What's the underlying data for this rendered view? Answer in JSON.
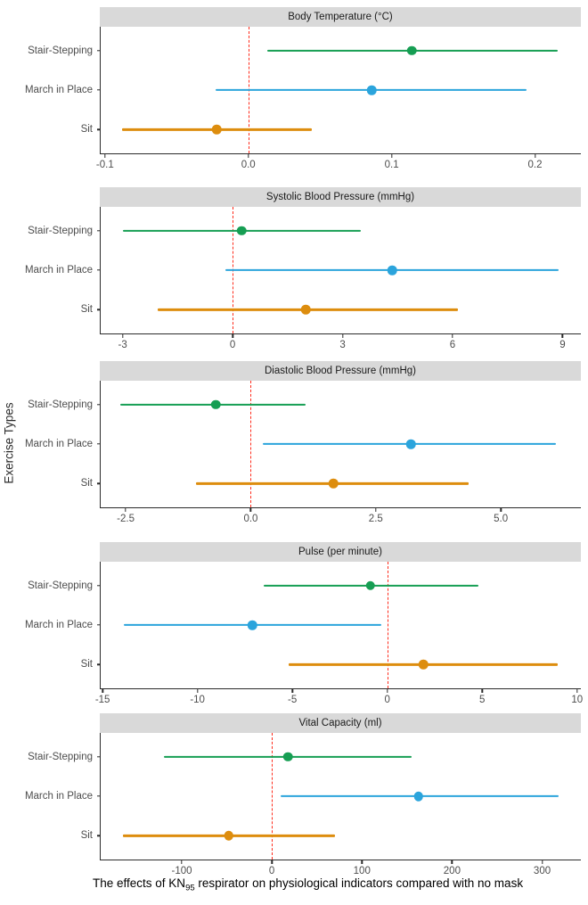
{
  "figure": {
    "y_axis_title": "Exercise Types",
    "caption": {
      "prefix": "The effects of KN",
      "subscript": "95",
      "suffix": " respirator on physiological indicators compared with no mask"
    }
  },
  "colors": {
    "Stair-Stepping": "#169e53",
    "March in Place": "#2ba4dc",
    "Sit": "#dd8d0e",
    "reference_line": "#ff2a1a",
    "strip_background": "#d9d9d9",
    "axis_text": "#4d4d4d",
    "axis_line": "#2b2b2b"
  },
  "chart_data": [
    {
      "type": "pointrange",
      "title": "Body Temperature (°C)",
      "categories": [
        "Stair-Stepping",
        "March in Place",
        "Sit"
      ],
      "xlim": [
        -0.103,
        0.232
      ],
      "reference_x": 0,
      "grid": false,
      "ticks": [
        {
          "value": -0.1,
          "label": "-0.1"
        },
        {
          "value": 0.0,
          "label": "0.0"
        },
        {
          "value": 0.1,
          "label": "0.1"
        },
        {
          "value": 0.2,
          "label": "0.2"
        }
      ],
      "series": [
        {
          "name": "Stair-Stepping",
          "estimate": 0.114,
          "ci_lower": 0.013,
          "ci_upper": 0.216
        },
        {
          "name": "March in Place",
          "estimate": 0.086,
          "ci_lower": -0.023,
          "ci_upper": 0.194
        },
        {
          "name": "Sit",
          "estimate": -0.022,
          "ci_lower": -0.088,
          "ci_upper": 0.044
        }
      ]
    },
    {
      "type": "pointrange",
      "title": "Systolic Blood Pressure (mmHg)",
      "categories": [
        "Stair-Stepping",
        "March in Place",
        "Sit"
      ],
      "xlim": [
        -3.6,
        9.5
      ],
      "reference_x": 0,
      "grid": false,
      "ticks": [
        {
          "value": -3,
          "label": "-3"
        },
        {
          "value": 0,
          "label": "0"
        },
        {
          "value": 3,
          "label": "3"
        },
        {
          "value": 6,
          "label": "6"
        },
        {
          "value": 9,
          "label": "9"
        }
      ],
      "series": [
        {
          "name": "Stair-Stepping",
          "estimate": 0.25,
          "ci_lower": -3.0,
          "ci_upper": 3.5
        },
        {
          "name": "March in Place",
          "estimate": 4.35,
          "ci_lower": -0.2,
          "ci_upper": 8.9
        },
        {
          "name": "Sit",
          "estimate": 2.0,
          "ci_lower": -2.05,
          "ci_upper": 6.15
        }
      ]
    },
    {
      "type": "pointrange",
      "title": "Diastolic Blood Pressure (mmHg)",
      "categories": [
        "Stair-Stepping",
        "March in Place",
        "Sit"
      ],
      "xlim": [
        -3.0,
        6.6
      ],
      "reference_x": 0,
      "grid": false,
      "ticks": [
        {
          "value": -2.5,
          "label": "-2.5"
        },
        {
          "value": 0.0,
          "label": "0.0"
        },
        {
          "value": 2.5,
          "label": "2.5"
        },
        {
          "value": 5.0,
          "label": "5.0"
        }
      ],
      "series": [
        {
          "name": "Stair-Stepping",
          "estimate": -0.7,
          "ci_lower": -2.6,
          "ci_upper": 1.1
        },
        {
          "name": "March in Place",
          "estimate": 3.2,
          "ci_lower": 0.25,
          "ci_upper": 6.1
        },
        {
          "name": "Sit",
          "estimate": 1.65,
          "ci_lower": -1.1,
          "ci_upper": 4.35
        }
      ]
    },
    {
      "type": "pointrange",
      "title": "Pulse (per minute)",
      "categories": [
        "Stair-Stepping",
        "March in Place",
        "Sit"
      ],
      "xlim": [
        -15.1,
        10.2
      ],
      "reference_x": 0,
      "grid": false,
      "ticks": [
        {
          "value": -15,
          "label": "-15"
        },
        {
          "value": -10,
          "label": "-10"
        },
        {
          "value": -5,
          "label": "-5"
        },
        {
          "value": 0,
          "label": "0"
        },
        {
          "value": 5,
          "label": "5"
        },
        {
          "value": 10,
          "label": "10"
        }
      ],
      "series": [
        {
          "name": "Stair-Stepping",
          "estimate": -0.9,
          "ci_lower": -6.5,
          "ci_upper": 4.8
        },
        {
          "name": "March in Place",
          "estimate": -7.1,
          "ci_lower": -13.9,
          "ci_upper": -0.3
        },
        {
          "name": "Sit",
          "estimate": 1.9,
          "ci_lower": -5.2,
          "ci_upper": 9.0
        }
      ]
    },
    {
      "type": "pointrange",
      "title": "Vital Capacity (ml)",
      "categories": [
        "Stair-Stepping",
        "March in Place",
        "Sit"
      ],
      "xlim": [
        -190,
        343
      ],
      "reference_x": 0,
      "grid": false,
      "ticks": [
        {
          "value": -100,
          "label": "-100"
        },
        {
          "value": 0,
          "label": "0"
        },
        {
          "value": 100,
          "label": "100"
        },
        {
          "value": 200,
          "label": "200"
        },
        {
          "value": 300,
          "label": "300"
        }
      ],
      "series": [
        {
          "name": "Stair-Stepping",
          "estimate": 18,
          "ci_lower": -120,
          "ci_upper": 155
        },
        {
          "name": "March in Place",
          "estimate": 163,
          "ci_lower": 10,
          "ci_upper": 318
        },
        {
          "name": "Sit",
          "estimate": -48,
          "ci_lower": -165,
          "ci_upper": 70
        }
      ]
    }
  ]
}
